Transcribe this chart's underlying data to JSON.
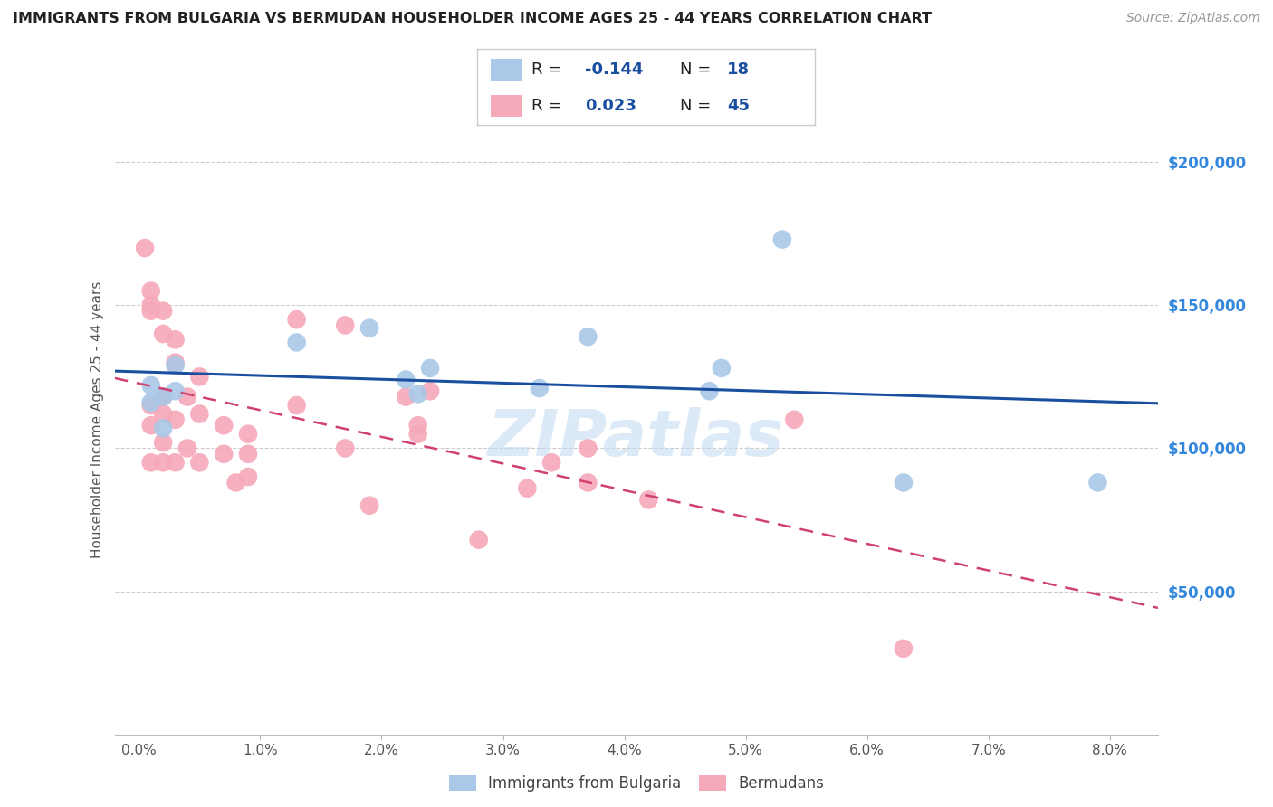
{
  "title": "IMMIGRANTS FROM BULGARIA VS BERMUDAN HOUSEHOLDER INCOME AGES 25 - 44 YEARS CORRELATION CHART",
  "source": "Source: ZipAtlas.com",
  "ylabel": "Householder Income Ages 25 - 44 years",
  "xlabel_ticks": [
    "0.0%",
    "1.0%",
    "2.0%",
    "3.0%",
    "4.0%",
    "5.0%",
    "6.0%",
    "7.0%",
    "8.0%"
  ],
  "xlabel_vals": [
    0.0,
    0.01,
    0.02,
    0.03,
    0.04,
    0.05,
    0.06,
    0.07,
    0.08
  ],
  "ytick_labels": [
    "$50,000",
    "$100,000",
    "$150,000",
    "$200,000"
  ],
  "ytick_vals": [
    50000,
    100000,
    150000,
    200000
  ],
  "ylim": [
    0,
    220000
  ],
  "xlim": [
    -0.002,
    0.084
  ],
  "legend_r_blue": "-0.144",
  "legend_n_blue": "18",
  "legend_r_pink": "0.023",
  "legend_n_pink": "45",
  "blue_scatter_x": [
    0.001,
    0.001,
    0.002,
    0.002,
    0.003,
    0.003,
    0.013,
    0.019,
    0.022,
    0.023,
    0.024,
    0.033,
    0.037,
    0.047,
    0.048,
    0.053,
    0.063,
    0.079
  ],
  "blue_scatter_y": [
    122000,
    116000,
    107000,
    118000,
    129000,
    120000,
    137000,
    142000,
    124000,
    119000,
    128000,
    121000,
    139000,
    120000,
    128000,
    173000,
    88000,
    88000
  ],
  "pink_scatter_x": [
    0.0005,
    0.001,
    0.001,
    0.001,
    0.001,
    0.001,
    0.001,
    0.002,
    0.002,
    0.002,
    0.002,
    0.002,
    0.002,
    0.003,
    0.003,
    0.003,
    0.003,
    0.004,
    0.004,
    0.005,
    0.005,
    0.005,
    0.007,
    0.007,
    0.008,
    0.009,
    0.009,
    0.009,
    0.013,
    0.013,
    0.017,
    0.017,
    0.019,
    0.022,
    0.023,
    0.023,
    0.024,
    0.028,
    0.032,
    0.034,
    0.037,
    0.037,
    0.042,
    0.054,
    0.063
  ],
  "pink_scatter_y": [
    170000,
    155000,
    150000,
    148000,
    115000,
    108000,
    95000,
    148000,
    140000,
    118000,
    112000,
    102000,
    95000,
    138000,
    130000,
    110000,
    95000,
    118000,
    100000,
    125000,
    112000,
    95000,
    108000,
    98000,
    88000,
    105000,
    98000,
    90000,
    145000,
    115000,
    143000,
    100000,
    80000,
    118000,
    105000,
    108000,
    120000,
    68000,
    86000,
    95000,
    100000,
    88000,
    82000,
    110000,
    30000
  ],
  "blue_color": "#aac8e8",
  "pink_color": "#f5a8b8",
  "blue_line_color": "#1a4fa0",
  "pink_line_color": "#d04070",
  "right_tick_color": "#3388dd",
  "grid_color": "#cccccc",
  "background_color": "#ffffff",
  "watermark_text": "ZIPatlas",
  "watermark_color": "#c0d8f0",
  "bottom_legend_labels": [
    "Immigrants from Bulgaria",
    "Bermudans"
  ]
}
